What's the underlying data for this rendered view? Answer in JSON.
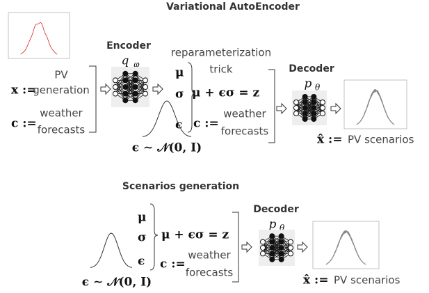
{
  "vae": {
    "title": "Variational AutoEncoder",
    "input": {
      "x": "x :=",
      "x_desc": [
        "PV",
        "generation"
      ],
      "c": "c :=",
      "c_desc": [
        "weather",
        "forecasts"
      ]
    },
    "encoder": {
      "title": "Encoder",
      "symbol": "q",
      "subscript": "φ"
    },
    "latent": {
      "note": [
        "reparameterization",
        "trick"
      ],
      "mu": "μ",
      "sigma": "σ",
      "eps": "ϵ",
      "equation": "μ + ϵσ = z",
      "c": "c :=",
      "c_desc": [
        "weather",
        "forecasts"
      ],
      "prior": "ϵ ∼ 𝒩(0, I)"
    },
    "decoder": {
      "title": "Decoder",
      "symbol": "p",
      "subscript": "θ"
    },
    "output": {
      "x": "x̂ :=",
      "desc": "PV scenarios"
    }
  },
  "generation": {
    "title": "Scenarios generation",
    "latent": {
      "mu": "μ",
      "sigma": "σ",
      "eps": "ϵ",
      "equation": "μ + ϵσ = z",
      "c": "c :=",
      "c_desc": [
        "weather",
        "forecasts"
      ],
      "prior": "ϵ ∼ 𝒩(0, I)"
    },
    "decoder": {
      "title": "Decoder",
      "symbol": "p",
      "subscript": "θ"
    },
    "output": {
      "x": "x̂ :=",
      "desc": "PV scenarios"
    }
  }
}
